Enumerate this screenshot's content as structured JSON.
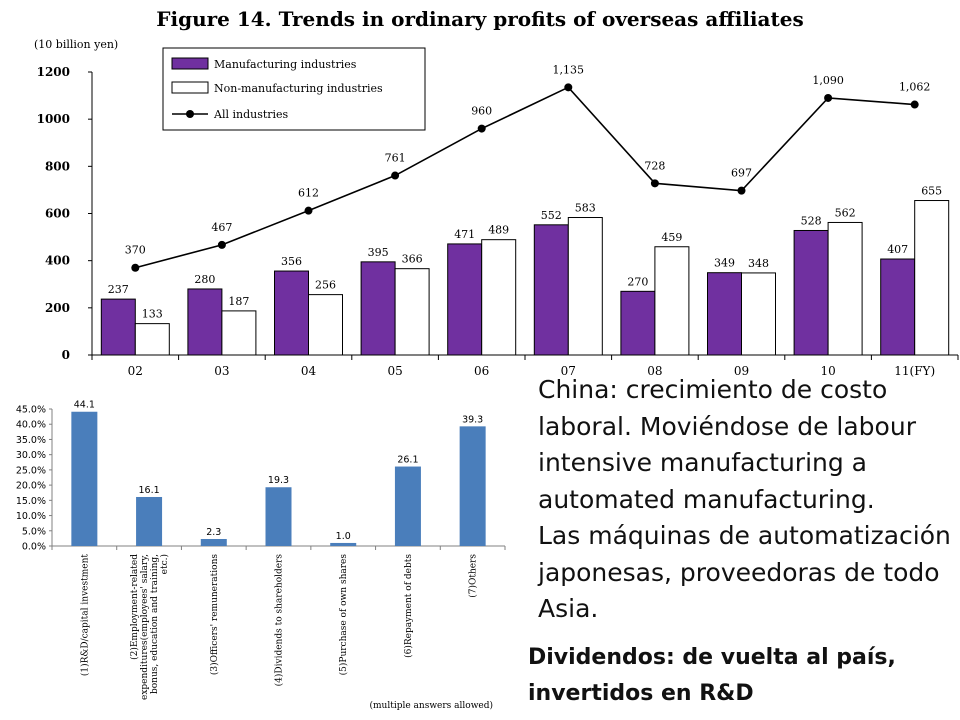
{
  "chart_data": [
    {
      "type": "bar",
      "title": "Figure 14. Trends in ordinary profits of overseas affiliates",
      "unit_label": "(10 billion yen)",
      "categories": [
        "02",
        "03",
        "04",
        "05",
        "06",
        "07",
        "08",
        "09",
        "10",
        "11(FY)"
      ],
      "ylim": [
        0,
        1200
      ],
      "yticks": [
        0,
        200,
        400,
        600,
        800,
        1000,
        1200
      ],
      "grid": false,
      "legend_position": "top-left",
      "series": [
        {
          "name": "Manufacturing industries",
          "kind": "bar",
          "color": "#7030A0",
          "values": [
            237,
            280,
            356,
            395,
            471,
            552,
            270,
            349,
            528,
            407
          ]
        },
        {
          "name": "Non-manufacturing industries",
          "kind": "bar",
          "color": "#FFFFFF",
          "values": [
            133,
            187,
            256,
            366,
            489,
            583,
            459,
            348,
            562,
            655
          ]
        },
        {
          "name": "All industries",
          "kind": "line",
          "color": "#000000",
          "values": [
            370,
            467,
            612,
            761,
            960,
            1135,
            728,
            697,
            1090,
            1062
          ],
          "labels": [
            "370",
            "467",
            "612",
            "761",
            "960",
            "1,135",
            "728",
            "697",
            "1,090",
            "1,062"
          ]
        }
      ]
    },
    {
      "type": "bar",
      "title": "",
      "categories": [
        "(1)R&D/capital investment",
        "(2)Employment-related expenditures(employees' salary, bonus, education and training, etc.)",
        "(3)Officers' remunerations",
        "(4)Dividends to shareholders",
        "(5)Purchase of own shares",
        "(6)Repayment of debts",
        "(7)Others"
      ],
      "category_lines": [
        [
          "(1)R&D/capital investment"
        ],
        [
          "(2)Employment-related",
          "expenditures(employees' salary,",
          "bonus, education and training,",
          "etc.)"
        ],
        [
          "(3)Officers' remunerations"
        ],
        [
          "(4)Dividends to shareholders"
        ],
        [
          "(5)Purchase of own shares"
        ],
        [
          "(6)Repayment of debts"
        ],
        [
          "(7)Others"
        ]
      ],
      "values": [
        44.1,
        16.1,
        2.3,
        19.3,
        1.0,
        26.1,
        39.3
      ],
      "value_labels": [
        "44.1",
        "16.1",
        "2.3",
        "19.3",
        "1.0",
        "26.1",
        "39.3"
      ],
      "ylim": [
        0,
        45
      ],
      "yticks": [
        "0.0%",
        "5.0%",
        "10.0%",
        "15.0%",
        "20.0%",
        "25.0%",
        "30.0%",
        "35.0%",
        "40.0%",
        "45.0%"
      ],
      "grid": false,
      "bar_color": "#4A7EBB",
      "note": "(multiple answers allowed)"
    }
  ],
  "notes": {
    "paragraphs": [
      "China: crecimiento de costo laboral. Moviéndose de labour intensive manufacturing a automated manufacturing.",
      "Las máquinas de automatización japonesas, proveedoras de todo Asia."
    ],
    "bold": "Dividendos: de vuelta al país, invertidos en R&D"
  }
}
